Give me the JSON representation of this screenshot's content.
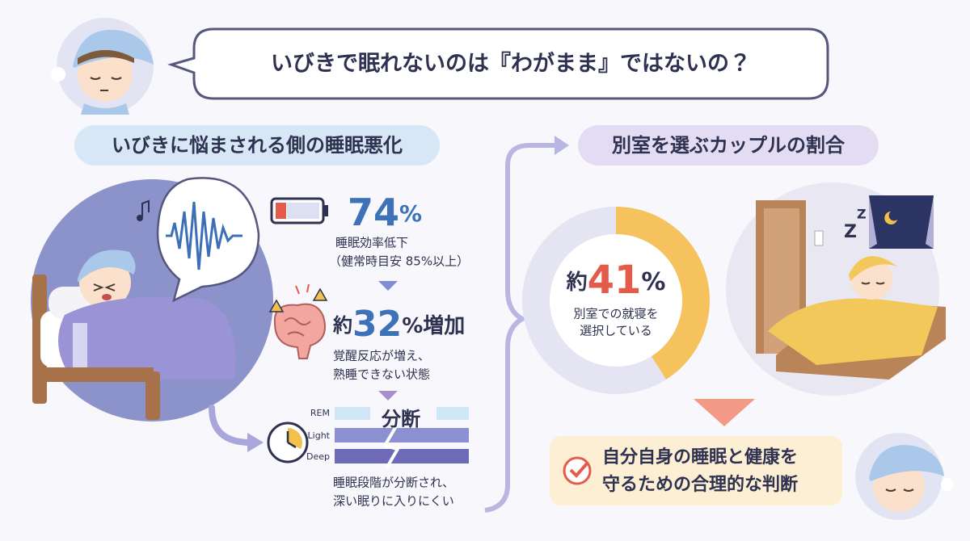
{
  "header": {
    "title": "いびきで眠れないのは『わがまま』ではないの？"
  },
  "left": {
    "heading": "いびきに悩まされる側の睡眠悪化",
    "stats": [
      {
        "value": "74",
        "suffix": "%",
        "lines": [
          "睡眠効率低下",
          "（健常時目安 85%以上）"
        ]
      },
      {
        "prefix": "約",
        "value": "32",
        "suffix": "%増加",
        "lines": [
          "覚醒反応が増え、",
          "熟睡できない状態"
        ]
      },
      {
        "title": "分断",
        "stages": [
          "REM",
          "Light",
          "Deep"
        ],
        "lines": [
          "睡眠段階が分断され、",
          "深い眠りに入りにくい"
        ]
      }
    ]
  },
  "right": {
    "heading": "別室を選ぶカップルの割合",
    "donut": {
      "prefix": "約",
      "value": 41,
      "unit": "%",
      "lines": [
        "別室での就寝を",
        "選択している"
      ]
    },
    "sleep_marks": [
      "Z",
      "Z"
    ]
  },
  "conclusion": {
    "lines": [
      "自分自身の睡眠と健康を",
      "守るための合理的な判断"
    ]
  }
}
